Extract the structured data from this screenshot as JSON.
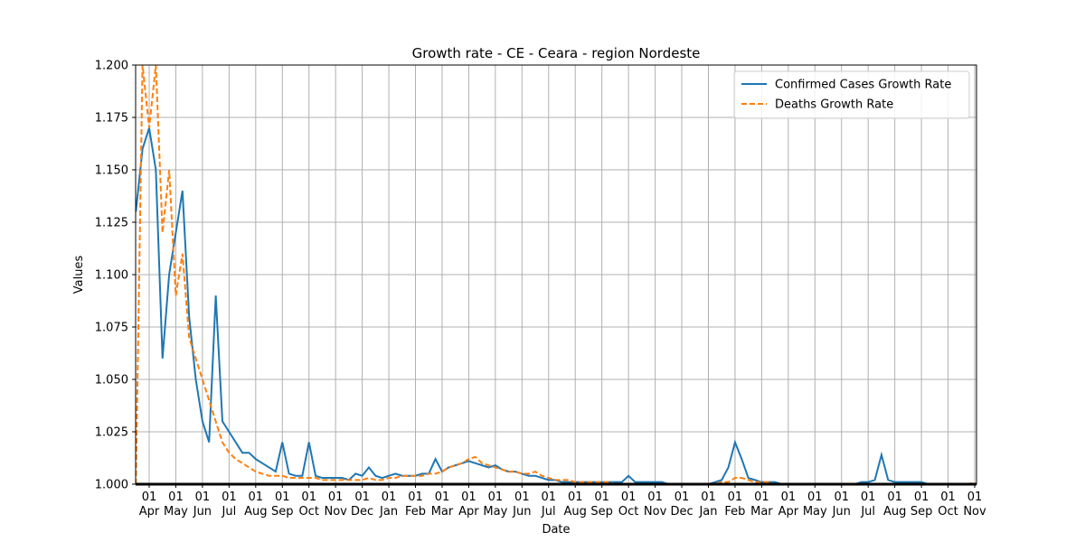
{
  "chart_data": {
    "type": "line",
    "title": "Growth rate - CE - Ceara - region Nordeste",
    "xlabel": "Date",
    "ylabel": "Values",
    "categories": [
      null,
      null,
      "01\nApr",
      null,
      null,
      null,
      "01\nMay",
      null,
      null,
      null,
      "01\nJun",
      null,
      null,
      null,
      "01\nJul",
      null,
      null,
      null,
      "01\nAug",
      null,
      null,
      null,
      "01\nSep",
      null,
      null,
      null,
      "01\nOct",
      null,
      null,
      null,
      "01\nNov",
      null,
      null,
      null,
      "01\nDec",
      null,
      null,
      null,
      "01\nJan",
      null,
      null,
      null,
      "01\nFeb",
      null,
      null,
      null,
      "01\nMar",
      null,
      null,
      null,
      "01\nApr",
      null,
      null,
      null,
      "01\nMay",
      null,
      null,
      null,
      "01\nJun",
      null,
      null,
      null,
      "01\nJul",
      null,
      null,
      null,
      "01\nAug",
      null,
      null,
      null,
      "01\nSep",
      null,
      null,
      null,
      "01\nOct",
      null,
      null,
      null,
      "01\nNov",
      null,
      null,
      null,
      "01\nDec",
      null,
      null,
      null,
      "01\nJan",
      null,
      null,
      null,
      "01\nFeb",
      null,
      null,
      null,
      "01\nMar",
      null,
      null,
      null,
      "01\nApr",
      null,
      null,
      null,
      "01\nMay",
      null,
      null,
      null,
      "01\nJun",
      null,
      null,
      null,
      "01\nJul",
      null,
      null,
      null,
      "01\nAug",
      null,
      null,
      null,
      "01\nSep",
      null,
      null,
      null,
      "01\nOct",
      null,
      null,
      null,
      "01\nNov"
    ],
    "series": [
      {
        "name": "Confirmed Cases Growth Rate",
        "color": "#1f77b4",
        "linestyle": "solid",
        "values": [
          1.13,
          1.16,
          1.17,
          1.15,
          1.06,
          1.1,
          1.12,
          1.14,
          1.08,
          1.05,
          1.03,
          1.02,
          1.09,
          1.03,
          1.025,
          1.02,
          1.015,
          1.015,
          1.012,
          1.01,
          1.008,
          1.006,
          1.02,
          1.005,
          1.004,
          1.004,
          1.02,
          1.004,
          1.003,
          1.003,
          1.003,
          1.003,
          1.002,
          1.005,
          1.004,
          1.008,
          1.004,
          1.003,
          1.004,
          1.005,
          1.004,
          1.004,
          1.004,
          1.005,
          1.005,
          1.012,
          1.006,
          1.008,
          1.009,
          1.01,
          1.011,
          1.01,
          1.009,
          1.008,
          1.009,
          1.007,
          1.006,
          1.006,
          1.005,
          1.004,
          1.004,
          1.003,
          1.002,
          1.002,
          1.001,
          1.001,
          1.001,
          1.001,
          1.001,
          1.001,
          1.001,
          1.001,
          1.001,
          1.001,
          1.004,
          1.001,
          1.001,
          1.001,
          1.001,
          1.001,
          1,
          1,
          1,
          1,
          1,
          1,
          1,
          1.001,
          1.002,
          1.008,
          1.02,
          1.012,
          1.003,
          1.002,
          1.001,
          1.001,
          1.001,
          1,
          1,
          1,
          1,
          1,
          1,
          1,
          1,
          1,
          1,
          1,
          1,
          1.001,
          1.001,
          1.002,
          1.014,
          1.002,
          1.001,
          1.001,
          1.001,
          1.001,
          1.001,
          1,
          1,
          1,
          1,
          1,
          1,
          1,
          1
        ]
      },
      {
        "name": "Deaths Growth Rate",
        "color": "#ff7f0e",
        "linestyle": "dashed",
        "values": [
          1.0,
          1.2,
          1.17,
          1.2,
          1.12,
          1.15,
          1.09,
          1.11,
          1.07,
          1.06,
          1.05,
          1.04,
          1.03,
          1.02,
          1.015,
          1.012,
          1.01,
          1.008,
          1.006,
          1.005,
          1.004,
          1.004,
          1.004,
          1.003,
          1.003,
          1.003,
          1.003,
          1.003,
          1.002,
          1.002,
          1.002,
          1.002,
          1.002,
          1.002,
          1.002,
          1.003,
          1.002,
          1.002,
          1.003,
          1.003,
          1.004,
          1.004,
          1.004,
          1.004,
          1.005,
          1.005,
          1.006,
          1.008,
          1.009,
          1.01,
          1.012,
          1.013,
          1.01,
          1.009,
          1.008,
          1.007,
          1.006,
          1.006,
          1.005,
          1.005,
          1.006,
          1.004,
          1.003,
          1.002,
          1.002,
          1.002,
          1.001,
          1.001,
          1.001,
          1.001,
          1.001,
          1.001,
          1,
          1,
          1,
          1,
          1,
          1,
          1,
          1,
          1,
          1,
          1,
          1,
          1,
          1,
          1,
          1,
          1.001,
          1.001,
          1.003,
          1.003,
          1.002,
          1.001,
          1.001,
          1.001,
          1,
          1,
          1,
          1,
          1,
          1,
          1,
          1,
          1,
          1,
          1,
          1,
          1,
          1,
          1,
          1,
          1,
          1,
          1,
          1,
          1,
          1,
          1,
          1,
          1,
          1,
          1,
          1,
          1,
          1,
          1.001
        ]
      }
    ],
    "ylim": [
      1.0,
      1.2
    ],
    "yticks": [
      {
        "value": 1.0,
        "label": "1.000"
      },
      1.025,
      {
        "value": 1.05,
        "label": "1.050"
      },
      1.075,
      {
        "value": 1.1,
        "label": "1.100"
      },
      1.125,
      {
        "value": 1.15,
        "label": "1.150"
      },
      1.175,
      {
        "value": 1.2,
        "label": "1.200"
      }
    ],
    "grid": true,
    "legend": "upper right"
  }
}
